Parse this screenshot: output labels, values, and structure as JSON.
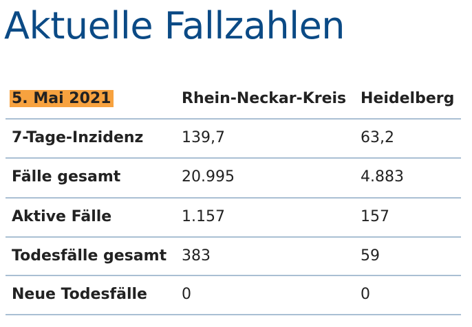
{
  "title": "Aktuelle Fallzahlen",
  "table": {
    "header": [
      "5. Mai 2021",
      "Rhein-Neckar-Kreis",
      "Heidelberg"
    ],
    "rows": [
      [
        "7-Tage-Inzidenz",
        "139,7",
        "63,2"
      ],
      [
        "Fälle gesamt",
        "20.995",
        "4.883"
      ],
      [
        "Aktive Fälle",
        "1.157",
        "157"
      ],
      [
        "Todesfälle gesamt",
        "383",
        "59"
      ],
      [
        "Neue Todesfälle",
        "0",
        "0"
      ]
    ]
  }
}
